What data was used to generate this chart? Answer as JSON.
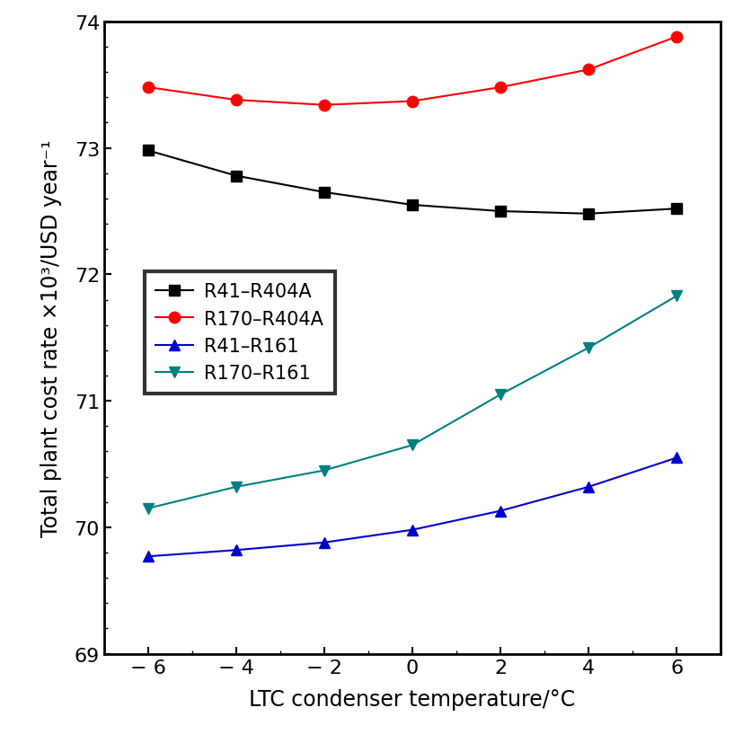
{
  "x": [
    -6,
    -4,
    -2,
    0,
    2,
    4,
    6
  ],
  "R41_R404A": [
    72.98,
    72.78,
    72.65,
    72.55,
    72.5,
    72.48,
    72.52
  ],
  "R170_R404A": [
    73.48,
    73.38,
    73.34,
    73.37,
    73.48,
    73.62,
    73.88
  ],
  "R41_R161": [
    69.77,
    69.82,
    69.88,
    69.98,
    70.13,
    70.32,
    70.55
  ],
  "R170_R161": [
    70.15,
    70.32,
    70.45,
    70.65,
    71.05,
    71.42,
    71.83
  ],
  "colors": {
    "R41_R404A": "#000000",
    "R170_R404A": "#ff0000",
    "R41_R161": "#0000cc",
    "R170_R161": "#008080"
  },
  "markers": {
    "R41_R404A": "s",
    "R170_R404A": "o",
    "R41_R161": "^",
    "R170_R161": "v"
  },
  "labels": {
    "R41_R404A": "R41–R404A",
    "R170_R404A": "R170–R404A",
    "R41_R161": "R41–R161",
    "R170_R161": "R170–R161"
  },
  "xlabel": "LTC condenser temperature/°C",
  "ylabel": "Total plant cost rate ×10³/USD year⁻¹",
  "ylim": [
    69,
    74
  ],
  "xlim": [
    -7,
    7
  ],
  "xticks": [
    -6,
    -4,
    -2,
    0,
    2,
    4,
    6
  ],
  "yticks": [
    69,
    70,
    71,
    72,
    73,
    74
  ],
  "xtick_labels": [
    "− 6",
    "− 4",
    "− 2",
    "0",
    "2",
    "4",
    "6"
  ],
  "markersize": 9,
  "linewidth": 1.5
}
